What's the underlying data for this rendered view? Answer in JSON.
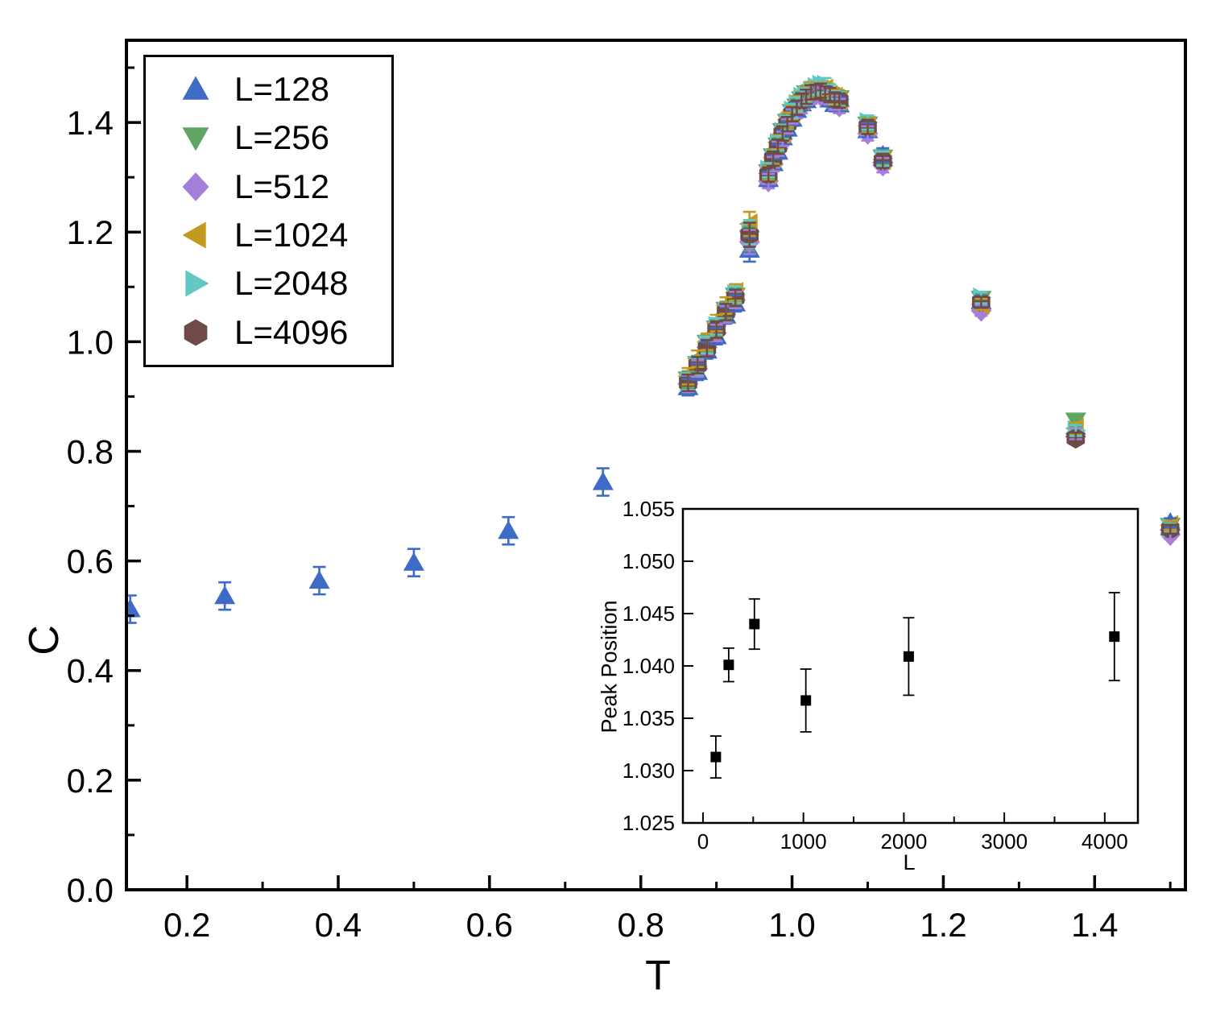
{
  "figure": {
    "background": "#ffffff"
  },
  "chart_data": [
    {
      "id": "main",
      "type": "scatter",
      "title": "",
      "xlabel": "T",
      "ylabel": "C",
      "xlim": [
        0.12,
        1.52
      ],
      "ylim": [
        0.0,
        1.55
      ],
      "grid": false,
      "legend_position": "top-left",
      "x_major_ticks": [
        0.2,
        0.4,
        0.6,
        0.8,
        1.0,
        1.2,
        1.4
      ],
      "x_tick_labels": [
        "0.2",
        "0.4",
        "0.6",
        "0.8",
        "1.0",
        "1.2",
        "1.4"
      ],
      "x_minor_ticks": [
        0.3,
        0.5,
        0.7,
        0.9,
        1.1,
        1.3,
        1.5
      ],
      "y_major_ticks": [
        0.0,
        0.2,
        0.4,
        0.6,
        0.8,
        1.0,
        1.2,
        1.4
      ],
      "y_tick_labels": [
        "0.0",
        "0.2",
        "0.4",
        "0.6",
        "0.8",
        "1.0",
        "1.2",
        "1.4"
      ],
      "y_minor_ticks": [
        0.1,
        0.3,
        0.5,
        0.7,
        0.9,
        1.1,
        1.3,
        1.5
      ],
      "series": [
        {
          "name": "L=128",
          "marker": "triangle-up",
          "color": "#3D6BC6",
          "points": [
            [
              0.125,
              0.512,
              0.025
            ],
            [
              0.25,
              0.536,
              0.025
            ],
            [
              0.375,
              0.564,
              0.025
            ],
            [
              0.5,
              0.597,
              0.025
            ],
            [
              0.625,
              0.655,
              0.025
            ],
            [
              0.75,
              0.744,
              0.025
            ],
            [
              0.8625,
              0.917,
              0.015
            ],
            [
              0.875,
              0.945,
              0.015
            ],
            [
              0.8875,
              0.984,
              0.015
            ],
            [
              0.9,
              1.01,
              0.015
            ],
            [
              0.9125,
              1.048,
              0.015
            ],
            [
              0.925,
              1.07,
              0.015
            ],
            [
              0.94375,
              1.168,
              0.022
            ],
            [
              0.96875,
              1.297,
              0.013
            ],
            [
              0.975,
              1.326,
              0.013
            ],
            [
              0.98125,
              1.347,
              0.013
            ],
            [
              0.9875,
              1.373,
              0.013
            ],
            [
              0.99375,
              1.389,
              0.013
            ],
            [
              1.0,
              1.407,
              0.013
            ],
            [
              1.00625,
              1.423,
              0.013
            ],
            [
              1.0125,
              1.435,
              0.013
            ],
            [
              1.01875,
              1.441,
              0.013
            ],
            [
              1.025,
              1.451,
              0.013
            ],
            [
              1.03125,
              1.456,
              0.013
            ],
            [
              1.0375,
              1.452,
              0.013
            ],
            [
              1.04375,
              1.451,
              0.013
            ],
            [
              1.05,
              1.442,
              0.013
            ],
            [
              1.05625,
              1.434,
              0.013
            ],
            [
              1.0625,
              1.433,
              0.013
            ],
            [
              1.1,
              1.386,
              0.013
            ],
            [
              1.12,
              1.34,
              0.013
            ],
            [
              1.25,
              1.074,
              0.01
            ],
            [
              1.375,
              0.84,
              0.01
            ],
            [
              1.5,
              0.67,
              0.008
            ]
          ]
        },
        {
          "name": "L=256",
          "marker": "triangle-down",
          "color": "#61A565",
          "points": [
            [
              0.8625,
              0.931,
              0.015
            ],
            [
              0.875,
              0.959,
              0.015
            ],
            [
              0.8875,
              0.998,
              0.015
            ],
            [
              0.9,
              1.024,
              0.015
            ],
            [
              0.9125,
              1.058,
              0.015
            ],
            [
              0.925,
              1.084,
              0.015
            ],
            [
              0.94375,
              1.188,
              0.022
            ],
            [
              0.96875,
              1.309,
              0.013
            ],
            [
              0.975,
              1.338,
              0.013
            ],
            [
              0.98125,
              1.358,
              0.013
            ],
            [
              0.9875,
              1.384,
              0.013
            ],
            [
              0.99375,
              1.401,
              0.013
            ],
            [
              1.0,
              1.419,
              0.013
            ],
            [
              1.00625,
              1.429,
              0.013
            ],
            [
              1.0125,
              1.442,
              0.013
            ],
            [
              1.01875,
              1.453,
              0.013
            ],
            [
              1.025,
              1.455,
              0.013
            ],
            [
              1.03125,
              1.46,
              0.013
            ],
            [
              1.0375,
              1.458,
              0.013
            ],
            [
              1.04375,
              1.457,
              0.013
            ],
            [
              1.05,
              1.45,
              0.013
            ],
            [
              1.05625,
              1.446,
              0.013
            ],
            [
              1.0625,
              1.444,
              0.013
            ],
            [
              1.1,
              1.396,
              0.013
            ],
            [
              1.12,
              1.336,
              0.013
            ],
            [
              1.25,
              1.078,
              0.01
            ],
            [
              1.375,
              0.856,
              0.01
            ],
            [
              1.5,
              0.664,
              0.008
            ]
          ]
        },
        {
          "name": "L=512",
          "marker": "diamond",
          "color": "#A57FD9",
          "points": [
            [
              0.8625,
              0.923,
              0.015
            ],
            [
              0.875,
              0.951,
              0.015
            ],
            [
              0.8875,
              0.99,
              0.015
            ],
            [
              0.9,
              1.016,
              0.015
            ],
            [
              0.9125,
              1.05,
              0.015
            ],
            [
              0.925,
              1.076,
              0.015
            ],
            [
              0.94375,
              1.182,
              0.022
            ],
            [
              0.96875,
              1.293,
              0.013
            ],
            [
              0.975,
              1.324,
              0.013
            ],
            [
              0.98125,
              1.352,
              0.013
            ],
            [
              0.9875,
              1.37,
              0.013
            ],
            [
              0.99375,
              1.393,
              0.013
            ],
            [
              1.0,
              1.411,
              0.013
            ],
            [
              1.00625,
              1.421,
              0.013
            ],
            [
              1.0125,
              1.43,
              0.013
            ],
            [
              1.01875,
              1.445,
              0.013
            ],
            [
              1.025,
              1.447,
              0.013
            ],
            [
              1.03125,
              1.454,
              0.013
            ],
            [
              1.0375,
              1.45,
              0.013
            ],
            [
              1.04375,
              1.449,
              0.013
            ],
            [
              1.05,
              1.446,
              0.013
            ],
            [
              1.05625,
              1.436,
              0.013
            ],
            [
              1.0625,
              1.43,
              0.013
            ],
            [
              1.1,
              1.38,
              0.013
            ],
            [
              1.12,
              1.322,
              0.013
            ],
            [
              1.25,
              1.057,
              0.01
            ],
            [
              1.375,
              0.832,
              0.01
            ],
            [
              1.5,
              0.648,
              0.008
            ]
          ]
        },
        {
          "name": "L=1024",
          "marker": "triangle-left",
          "color": "#C29A20",
          "points": [
            [
              0.8625,
              0.937,
              0.015
            ],
            [
              0.875,
              0.969,
              0.015
            ],
            [
              0.8875,
              1.0,
              0.015
            ],
            [
              0.9,
              1.034,
              0.015
            ],
            [
              0.9125,
              1.066,
              0.015
            ],
            [
              0.925,
              1.09,
              0.015
            ],
            [
              0.94375,
              1.215,
              0.022
            ],
            [
              0.96875,
              1.307,
              0.013
            ],
            [
              0.975,
              1.336,
              0.013
            ],
            [
              0.98125,
              1.364,
              0.013
            ],
            [
              0.9875,
              1.38,
              0.013
            ],
            [
              0.99375,
              1.405,
              0.013
            ],
            [
              1.0,
              1.417,
              0.013
            ],
            [
              1.00625,
              1.435,
              0.013
            ],
            [
              1.0125,
              1.44,
              0.013
            ],
            [
              1.01875,
              1.451,
              0.013
            ],
            [
              1.025,
              1.461,
              0.013
            ],
            [
              1.03125,
              1.458,
              0.013
            ],
            [
              1.0375,
              1.46,
              0.013
            ],
            [
              1.04375,
              1.461,
              0.013
            ],
            [
              1.05,
              1.45,
              0.013
            ],
            [
              1.05625,
              1.446,
              0.013
            ],
            [
              1.0625,
              1.44,
              0.013
            ],
            [
              1.1,
              1.394,
              0.013
            ],
            [
              1.12,
              1.332,
              0.013
            ],
            [
              1.25,
              1.068,
              0.01
            ],
            [
              1.375,
              0.842,
              0.01
            ],
            [
              1.5,
              0.665,
              0.008
            ]
          ]
        },
        {
          "name": "L=2048",
          "marker": "triangle-right",
          "color": "#62C8C4",
          "points": [
            [
              0.8625,
              0.927,
              0.015
            ],
            [
              0.875,
              0.955,
              0.015
            ],
            [
              0.8875,
              0.994,
              0.015
            ],
            [
              0.9,
              1.028,
              0.015
            ],
            [
              0.9125,
              1.054,
              0.015
            ],
            [
              0.925,
              1.086,
              0.015
            ],
            [
              0.94375,
              1.2,
              0.022
            ],
            [
              0.96875,
              1.313,
              0.013
            ],
            [
              0.975,
              1.334,
              0.013
            ],
            [
              0.98125,
              1.362,
              0.013
            ],
            [
              0.9875,
              1.382,
              0.013
            ],
            [
              0.99375,
              1.399,
              0.013
            ],
            [
              1.0,
              1.421,
              0.013
            ],
            [
              1.00625,
              1.433,
              0.013
            ],
            [
              1.0125,
              1.446,
              0.013
            ],
            [
              1.01875,
              1.449,
              0.013
            ],
            [
              1.025,
              1.457,
              0.013
            ],
            [
              1.03125,
              1.464,
              0.013
            ],
            [
              1.0375,
              1.468,
              0.013
            ],
            [
              1.04375,
              1.468,
              0.013
            ],
            [
              1.05,
              1.456,
              0.013
            ],
            [
              1.05625,
              1.444,
              0.013
            ],
            [
              1.0625,
              1.442,
              0.013
            ],
            [
              1.1,
              1.4,
              0.013
            ],
            [
              1.12,
              1.334,
              0.013
            ],
            [
              1.25,
              1.08,
              0.01
            ],
            [
              1.375,
              0.838,
              0.01
            ],
            [
              1.5,
              0.66,
              0.008
            ]
          ]
        },
        {
          "name": "L=4096",
          "marker": "hexagon",
          "color": "#6E4B47",
          "points": [
            [
              0.8625,
              0.925,
              0.015
            ],
            [
              0.875,
              0.957,
              0.015
            ],
            [
              0.8875,
              0.988,
              0.015
            ],
            [
              0.9,
              1.022,
              0.015
            ],
            [
              0.9125,
              1.054,
              0.015
            ],
            [
              0.925,
              1.08,
              0.015
            ],
            [
              0.94375,
              1.195,
              0.022
            ],
            [
              0.96875,
              1.305,
              0.013
            ],
            [
              0.975,
              1.334,
              0.013
            ],
            [
              0.98125,
              1.356,
              0.013
            ],
            [
              0.9875,
              1.38,
              0.013
            ],
            [
              0.99375,
              1.397,
              0.013
            ],
            [
              1.0,
              1.415,
              0.013
            ],
            [
              1.00625,
              1.427,
              0.013
            ],
            [
              1.0125,
              1.44,
              0.013
            ],
            [
              1.01875,
              1.447,
              0.013
            ],
            [
              1.025,
              1.455,
              0.013
            ],
            [
              1.03125,
              1.456,
              0.013
            ],
            [
              1.0375,
              1.458,
              0.013
            ],
            [
              1.04375,
              1.453,
              0.013
            ],
            [
              1.05,
              1.45,
              0.013
            ],
            [
              1.05625,
              1.442,
              0.013
            ],
            [
              1.0625,
              1.44,
              0.013
            ],
            [
              1.1,
              1.392,
              0.013
            ],
            [
              1.12,
              1.33,
              0.013
            ],
            [
              1.25,
              1.072,
              0.01
            ],
            [
              1.375,
              0.824,
              0.01
            ],
            [
              1.5,
              0.658,
              0.008
            ]
          ]
        }
      ]
    },
    {
      "id": "inset",
      "type": "scatter",
      "title": "",
      "xlabel": "L",
      "ylabel": "Peak Position",
      "xlim": [
        -200,
        4330
      ],
      "ylim": [
        1.025,
        1.055
      ],
      "grid": false,
      "x_major_ticks": [
        0,
        1000,
        2000,
        3000,
        4000
      ],
      "x_tick_labels": [
        "0",
        "1000",
        "2000",
        "3000",
        "4000"
      ],
      "x_minor_ticks": [
        500,
        1500,
        2500,
        3500
      ],
      "y_major_ticks": [
        1.025,
        1.03,
        1.035,
        1.04,
        1.045,
        1.05,
        1.055
      ],
      "y_tick_labels": [
        "1.025",
        "1.030",
        "1.035",
        "1.040",
        "1.045",
        "1.050",
        "1.055"
      ],
      "y_minor_ticks": [],
      "series": [
        {
          "name": "peak position",
          "marker": "square",
          "color": "#000000",
          "points": [
            [
              128,
              1.0313,
              0.002
            ],
            [
              256,
              1.0401,
              0.0016
            ],
            [
              512,
              1.044,
              0.0024
            ],
            [
              1024,
              1.0367,
              0.003
            ],
            [
              2048,
              1.0409,
              0.0037
            ],
            [
              4096,
              1.0428,
              0.0042
            ]
          ]
        }
      ]
    }
  ]
}
